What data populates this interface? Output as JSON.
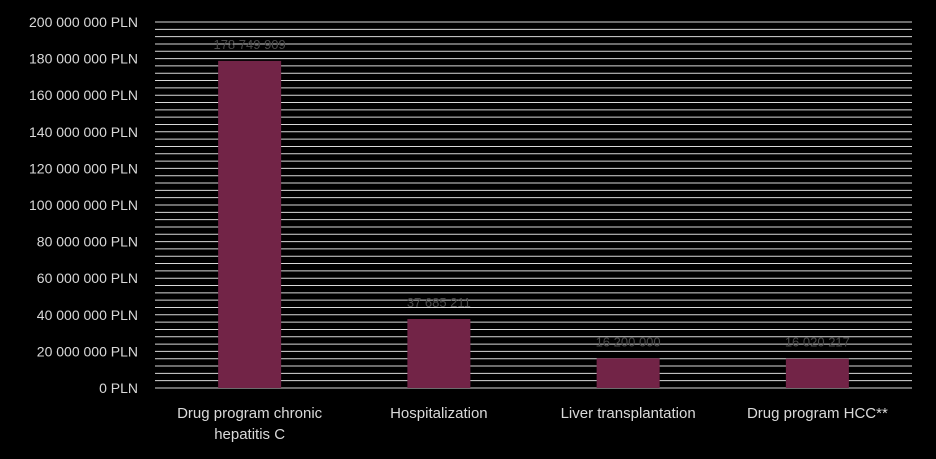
{
  "chart_data": {
    "type": "bar",
    "title": "",
    "xlabel": "",
    "ylabel": "",
    "ylim": [
      0,
      200000000
    ],
    "y_ticks": [
      "0 PLN",
      "20 000 000 PLN",
      "40 000 000 PLN",
      "60 000 000 PLN",
      "80 000 000 PLN",
      "100 000 000 PLN",
      "120 000 000 PLN",
      "140 000 000 PLN",
      "160 000 000 PLN",
      "180 000 000 PLN",
      "200 000 000 PLN"
    ],
    "categories": [
      [
        "Drug program chronic",
        "hepatitis C"
      ],
      [
        "Hospitalization"
      ],
      [
        "Liver transplantation"
      ],
      [
        "Drug program HCC**"
      ]
    ],
    "values": [
      178749909,
      37685211,
      16200000,
      16020217
    ],
    "data_labels": [
      "178 749 909",
      "37 685 211",
      "16 200 000",
      "16 020 217"
    ],
    "grid": true,
    "legend": "none",
    "bar_color": "#722447",
    "grid_color": "#d9d9d9",
    "background_color": "#000000"
  }
}
